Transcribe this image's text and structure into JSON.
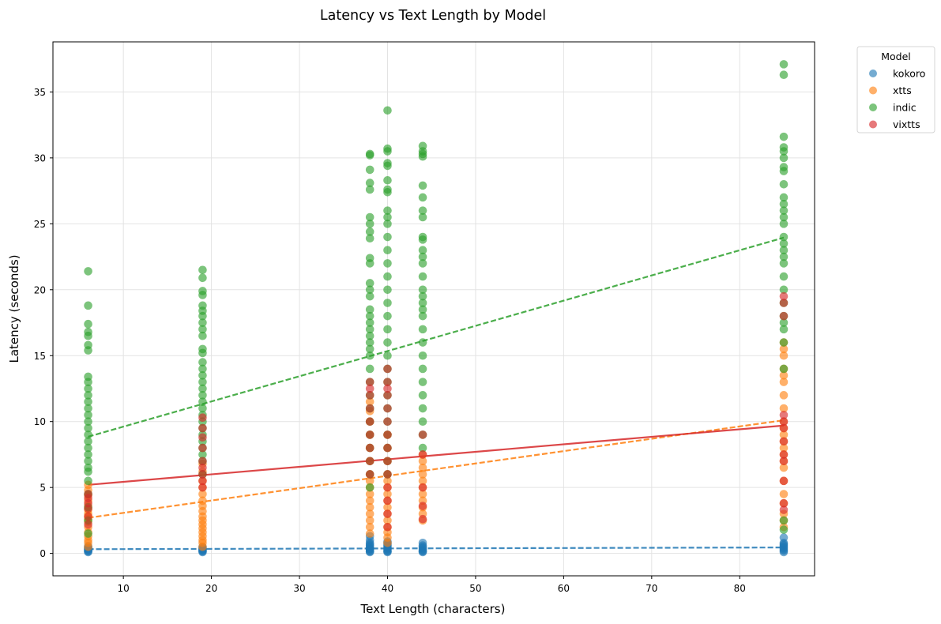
{
  "chart_data": {
    "type": "scatter",
    "title": "Latency vs Text Length by Model",
    "xlabel": "Text Length (characters)",
    "ylabel": "Latency (seconds)",
    "xlim": [
      2,
      88.5
    ],
    "ylim": [
      -1.7,
      38.8
    ],
    "xticks": [
      10,
      20,
      30,
      40,
      50,
      60,
      70,
      80
    ],
    "yticks": [
      0,
      5,
      10,
      15,
      20,
      25,
      30,
      35
    ],
    "grid": true,
    "legend": {
      "title": "Model",
      "placement": "outside-top-right"
    },
    "x_values": [
      6,
      19,
      38,
      40,
      44,
      85
    ],
    "series": [
      {
        "name": "kokoro",
        "color": "#1f77b4",
        "trend": {
          "x": [
            6,
            85
          ],
          "y": [
            0.32,
            0.45
          ],
          "dashed": true
        },
        "points": {
          "6": [
            0.1,
            0.15,
            0.2,
            0.25,
            0.3,
            0.35,
            0.4,
            0.45,
            0.55
          ],
          "19": [
            0.1,
            0.15,
            0.2,
            0.25,
            0.3,
            0.35,
            0.4,
            0.5
          ],
          "38": [
            0.1,
            0.15,
            0.2,
            0.3,
            0.35,
            0.4,
            0.5,
            0.6,
            0.7,
            0.8,
            1.0,
            1.3
          ],
          "40": [
            0.1,
            0.15,
            0.2,
            0.3,
            0.4,
            0.5,
            0.6,
            0.7,
            0.8,
            0.9
          ],
          "44": [
            0.1,
            0.15,
            0.2,
            0.3,
            0.4,
            0.5,
            0.6,
            0.8
          ],
          "85": [
            0.1,
            0.2,
            0.3,
            0.4,
            0.5,
            0.6,
            0.7,
            0.8,
            1.2
          ]
        }
      },
      {
        "name": "xtts",
        "color": "#ff7f0e",
        "trend": {
          "x": [
            6,
            85
          ],
          "y": [
            2.7,
            10.1
          ],
          "dashed": true
        },
        "points": {
          "6": [
            0.5,
            0.8,
            1.0,
            1.3,
            1.6,
            2.0,
            2.4,
            2.6,
            2.8,
            3.0,
            3.3,
            3.6,
            4.0,
            4.4,
            4.8,
            5.2
          ],
          "19": [
            0.5,
            0.8,
            1.0,
            1.3,
            1.6,
            1.9,
            2.2,
            2.5,
            2.8,
            3.2,
            3.6,
            4.0,
            4.5,
            5.0,
            5.5,
            6.2,
            6.8
          ],
          "38": [
            1.5,
            2.0,
            2.5,
            3.0,
            3.5,
            4.0,
            4.5,
            5.0,
            5.5,
            6.0,
            7.0,
            8.0,
            9.0,
            10.0,
            10.8,
            11.5
          ],
          "40": [
            0.8,
            1.2,
            1.6,
            2.0,
            2.5,
            3.0,
            3.5,
            4.0,
            4.5,
            5.0,
            5.5,
            6.0,
            7.0,
            8.0,
            9.0
          ],
          "44": [
            2.5,
            3.0,
            3.5,
            4.0,
            4.5,
            5.0,
            5.5,
            6.0,
            6.5,
            7.0,
            7.5
          ],
          "85": [
            2.0,
            2.5,
            3.0,
            3.8,
            4.5,
            5.5,
            6.5,
            7.0,
            7.5,
            8.0,
            8.5,
            9.0,
            9.5,
            10.0,
            11.0,
            12.0,
            13.0,
            13.5,
            14.0,
            15.0,
            15.5,
            16.0
          ]
        }
      },
      {
        "name": "indic",
        "color": "#2ca02c",
        "trend": {
          "x": [
            6,
            85
          ],
          "y": [
            8.85,
            23.95
          ],
          "dashed": true
        },
        "points": {
          "6": [
            1.5,
            2.5,
            3.5,
            4.5,
            5.5,
            6.2,
            6.5,
            7.0,
            7.5,
            8.0,
            8.5,
            9.0,
            9.5,
            10.0,
            10.5,
            11.0,
            11.5,
            12.0,
            12.5,
            13.0,
            13.4,
            15.4,
            15.8,
            16.5,
            16.8,
            17.4,
            18.8,
            21.4
          ],
          "19": [
            6.0,
            7.0,
            7.5,
            8.0,
            8.5,
            9.0,
            9.5,
            10.0,
            10.5,
            11.0,
            11.5,
            12.0,
            12.5,
            13.0,
            13.5,
            14.0,
            14.5,
            15.2,
            15.5,
            16.5,
            17.0,
            17.5,
            18.0,
            18.4,
            18.8,
            19.6,
            19.9,
            20.9,
            21.5
          ],
          "38": [
            5.0,
            6.0,
            7.0,
            8.0,
            9.0,
            10.0,
            11.0,
            12.0,
            13.0,
            14.0,
            15.0,
            15.5,
            16.0,
            16.5,
            17.0,
            17.5,
            18.0,
            18.5,
            19.5,
            20.0,
            20.5,
            22.0,
            22.4,
            23.9,
            24.4,
            25.0,
            25.5,
            27.6,
            28.1,
            29.1,
            30.2,
            30.3
          ],
          "40": [
            6.0,
            7.0,
            8.0,
            9.0,
            10.0,
            11.0,
            12.0,
            13.0,
            14.0,
            15.0,
            16.0,
            17.0,
            18.0,
            19.0,
            20.0,
            21.0,
            22.0,
            23.0,
            24.0,
            25.0,
            25.5,
            26.0,
            27.4,
            27.6,
            28.3,
            29.4,
            29.6,
            30.5,
            30.7,
            33.6
          ],
          "44": [
            8.0,
            9.0,
            10.0,
            11.0,
            12.0,
            13.0,
            14.0,
            15.0,
            16.0,
            17.0,
            18.0,
            18.5,
            19.0,
            19.5,
            20.0,
            21.0,
            22.0,
            22.5,
            23.0,
            23.8,
            24.0,
            25.5,
            26.0,
            27.0,
            27.9,
            30.1,
            30.3,
            30.5,
            30.9
          ],
          "85": [
            1.8,
            2.5,
            14.0,
            16.0,
            17.0,
            17.5,
            18.0,
            19.0,
            20.0,
            21.0,
            22.0,
            22.5,
            23.0,
            23.5,
            24.0,
            25.0,
            25.5,
            26.0,
            26.5,
            27.0,
            28.0,
            29.0,
            29.3,
            30.0,
            30.5,
            30.8,
            31.6,
            36.3,
            37.1
          ]
        }
      },
      {
        "name": "vixtts",
        "color": "#d62728",
        "trend": {
          "x": [
            6,
            85
          ],
          "y": [
            5.2,
            9.7
          ],
          "dashed": false
        },
        "points": {
          "6": [
            2.2,
            2.8,
            3.4,
            3.8,
            4.2,
            4.5
          ],
          "19": [
            5.0,
            5.5,
            6.0,
            6.5,
            7.0,
            8.0,
            8.8,
            9.5,
            10.3
          ],
          "38": [
            6.0,
            7.0,
            8.0,
            9.0,
            10.0,
            11.0,
            12.0,
            12.5,
            13.0
          ],
          "40": [
            2.0,
            3.0,
            4.0,
            5.0,
            6.0,
            7.0,
            8.0,
            9.0,
            10.0,
            11.0,
            12.0,
            12.5,
            13.0,
            14.0
          ],
          "44": [
            2.6,
            3.6,
            5.0,
            7.5,
            9.0
          ],
          "85": [
            3.3,
            3.8,
            5.5,
            7.0,
            7.5,
            8.5,
            9.5,
            10.0,
            10.5,
            18.0,
            19.0,
            19.5
          ]
        }
      }
    ]
  }
}
